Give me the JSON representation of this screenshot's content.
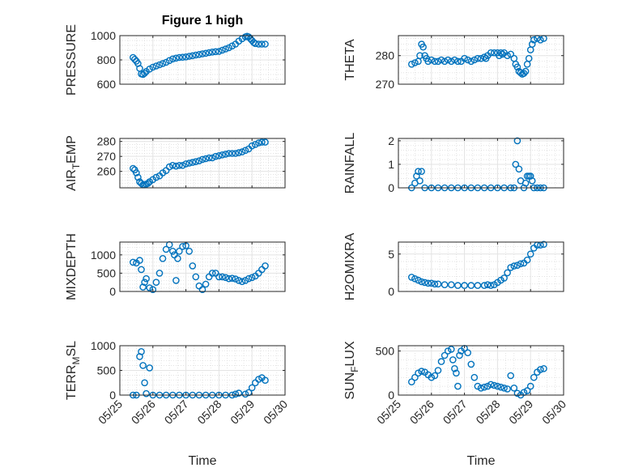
{
  "figure": {
    "title": "Figure 1 high",
    "marker_color": "#0072BD"
  },
  "chart_data": [
    {
      "type": "scatter",
      "title": "Figure 1 high",
      "ylabel": "PRESSURE",
      "xlabel": "",
      "ylim": [
        600,
        1000
      ],
      "yticks": [
        "600",
        "800",
        "1000"
      ],
      "xlim": [
        "05/25",
        "05/30"
      ],
      "series": [
        {
          "marker": "circle",
          "x": [
            25.4,
            25.45,
            25.5,
            25.55,
            25.6,
            25.65,
            25.7,
            25.75,
            25.8,
            25.9,
            26.0,
            26.1,
            26.2,
            26.3,
            26.4,
            26.5,
            26.6,
            26.7,
            26.8,
            26.9,
            27.0,
            27.1,
            27.2,
            27.3,
            27.4,
            27.5,
            27.6,
            27.7,
            27.8,
            27.9,
            28.0,
            28.1,
            28.2,
            28.3,
            28.4,
            28.5,
            28.6,
            28.7,
            28.8,
            28.85,
            28.9,
            28.95,
            29.0,
            29.05,
            29.1,
            29.2,
            29.3,
            29.4
          ],
          "y": [
            820,
            805,
            790,
            770,
            730,
            685,
            680,
            690,
            705,
            725,
            740,
            750,
            760,
            770,
            780,
            795,
            808,
            815,
            820,
            822,
            825,
            830,
            835,
            840,
            845,
            850,
            855,
            860,
            865,
            868,
            870,
            880,
            890,
            900,
            915,
            930,
            955,
            975,
            990,
            995,
            990,
            975,
            960,
            945,
            935,
            930,
            930,
            930
          ]
        }
      ]
    },
    {
      "type": "scatter",
      "ylabel": "THETA",
      "xlabel": "",
      "ylim": [
        270,
        287
      ],
      "yticks": [
        "270",
        "280"
      ],
      "xlim": [
        "05/25",
        "05/30"
      ],
      "series": [
        {
          "marker": "circle",
          "x": [
            25.4,
            25.5,
            25.6,
            25.65,
            25.7,
            25.75,
            25.8,
            25.85,
            25.9,
            26.0,
            26.1,
            26.2,
            26.3,
            26.4,
            26.5,
            26.6,
            26.7,
            26.8,
            26.9,
            27.0,
            27.1,
            27.2,
            27.3,
            27.4,
            27.5,
            27.6,
            27.65,
            27.7,
            27.8,
            27.9,
            28.0,
            28.05,
            28.1,
            28.15,
            28.2,
            28.3,
            28.4,
            28.5,
            28.55,
            28.6,
            28.65,
            28.7,
            28.75,
            28.8,
            28.85,
            28.9,
            28.95,
            29.0,
            29.05,
            29.1,
            29.2,
            29.3,
            29.4
          ],
          "y": [
            277,
            277.5,
            278,
            280,
            284,
            283,
            280,
            279,
            278,
            278.5,
            278,
            278,
            278.5,
            278,
            278.5,
            278,
            278.5,
            278,
            278,
            279,
            278.5,
            278,
            278.5,
            279,
            279,
            279.5,
            279,
            280,
            281,
            281,
            281,
            280,
            281,
            280.5,
            281,
            280,
            280.5,
            279,
            277,
            276,
            274.5,
            274,
            273.5,
            273.8,
            274.5,
            277,
            279,
            282,
            284,
            285.5,
            286,
            285.5,
            286
          ]
        }
      ]
    },
    {
      "type": "scatter",
      "ylabel": "AIR_TEMP",
      "xlabel": "",
      "ylim": [
        249,
        282
      ],
      "yticks": [
        "260",
        "270",
        "280"
      ],
      "xlim": [
        "05/25",
        "05/30"
      ],
      "series": [
        {
          "marker": "circle",
          "x": [
            25.4,
            25.45,
            25.5,
            25.55,
            25.6,
            25.65,
            25.7,
            25.75,
            25.8,
            25.85,
            25.9,
            26.0,
            26.1,
            26.2,
            26.3,
            26.4,
            26.5,
            26.6,
            26.7,
            26.8,
            26.9,
            27.0,
            27.1,
            27.2,
            27.3,
            27.4,
            27.5,
            27.6,
            27.7,
            27.8,
            27.9,
            28.0,
            28.1,
            28.2,
            28.3,
            28.4,
            28.5,
            28.6,
            28.7,
            28.8,
            28.9,
            29.0,
            29.1,
            29.2,
            29.3,
            29.4
          ],
          "y": [
            262,
            261,
            259,
            256,
            253,
            252,
            251,
            251,
            251.5,
            252,
            253,
            254.5,
            256,
            257,
            259,
            260.5,
            263,
            264,
            263.5,
            264,
            264,
            265,
            265.5,
            266,
            266.5,
            267,
            268,
            268.5,
            269,
            269,
            270,
            270.5,
            271,
            271.5,
            272,
            272,
            272,
            272.5,
            273,
            274,
            275,
            277,
            278,
            279,
            279.5,
            279.5
          ]
        }
      ]
    },
    {
      "type": "scatter",
      "ylabel": "RAINFALL",
      "xlabel": "",
      "ylim": [
        0,
        2.1
      ],
      "yticks": [
        "0",
        "1",
        "2"
      ],
      "xlim": [
        "05/25",
        "05/30"
      ],
      "series": [
        {
          "marker": "circle",
          "x": [
            25.4,
            25.5,
            25.55,
            25.6,
            25.65,
            25.7,
            25.8,
            26.0,
            26.2,
            26.4,
            26.6,
            26.8,
            27.0,
            27.2,
            27.4,
            27.6,
            27.8,
            28.0,
            28.2,
            28.4,
            28.5,
            28.55,
            28.6,
            28.65,
            28.7,
            28.8,
            28.85,
            28.9,
            28.95,
            29.0,
            29.05,
            29.1,
            29.2,
            29.3,
            29.4
          ],
          "y": [
            0,
            0.2,
            0.5,
            0.7,
            0.3,
            0.7,
            0,
            0,
            0,
            0,
            0,
            0,
            0,
            0,
            0,
            0,
            0,
            0,
            0,
            0,
            0,
            1,
            2,
            0.8,
            0.3,
            0,
            0.2,
            0.5,
            0.5,
            0.5,
            0.3,
            0,
            0,
            0,
            0
          ]
        }
      ]
    },
    {
      "type": "scatter",
      "ylabel": "MIXDEPTH",
      "xlabel": "",
      "ylim": [
        0,
        1350
      ],
      "yticks": [
        "0",
        "500",
        "1000"
      ],
      "xlim": [
        "05/25",
        "05/30"
      ],
      "series": [
        {
          "marker": "circle",
          "x": [
            25.4,
            25.5,
            25.6,
            25.65,
            25.7,
            25.75,
            25.8,
            25.9,
            26.0,
            26.1,
            26.2,
            26.3,
            26.4,
            26.5,
            26.6,
            26.65,
            26.7,
            26.75,
            26.8,
            26.9,
            27.0,
            27.1,
            27.2,
            27.3,
            27.4,
            27.5,
            27.6,
            27.7,
            27.8,
            27.9,
            28.0,
            28.1,
            28.2,
            28.3,
            28.4,
            28.5,
            28.6,
            28.7,
            28.8,
            28.9,
            29.0,
            29.1,
            29.2,
            29.3,
            29.4
          ],
          "y": [
            800,
            780,
            850,
            600,
            120,
            250,
            350,
            100,
            50,
            250,
            500,
            900,
            1150,
            1280,
            1100,
            1000,
            300,
            900,
            1100,
            1230,
            1250,
            1100,
            700,
            400,
            150,
            50,
            200,
            400,
            500,
            500,
            400,
            400,
            380,
            350,
            360,
            340,
            300,
            270,
            300,
            350,
            380,
            420,
            500,
            600,
            700
          ]
        }
      ]
    },
    {
      "type": "scatter",
      "ylabel": "H2OMIXRA",
      "xlabel": "",
      "ylim": [
        0,
        6.6
      ],
      "yticks": [
        "0",
        "5"
      ],
      "xlim": [
        "05/25",
        "05/30"
      ],
      "series": [
        {
          "marker": "circle",
          "x": [
            25.4,
            25.5,
            25.6,
            25.7,
            25.8,
            25.9,
            26.0,
            26.1,
            26.2,
            26.4,
            26.6,
            26.8,
            27.0,
            27.2,
            27.4,
            27.6,
            27.7,
            27.8,
            27.9,
            28.0,
            28.1,
            28.2,
            28.3,
            28.4,
            28.5,
            28.6,
            28.7,
            28.8,
            28.9,
            29.0,
            29.1,
            29.2,
            29.3,
            29.4
          ],
          "y": [
            1.9,
            1.7,
            1.5,
            1.3,
            1.2,
            1.1,
            1.1,
            1.0,
            1.0,
            0.9,
            0.9,
            0.8,
            0.8,
            0.8,
            0.8,
            0.8,
            0.9,
            0.8,
            0.9,
            1.2,
            1.5,
            1.8,
            2.5,
            3.2,
            3.4,
            3.5,
            3.7,
            3.8,
            4.2,
            5.0,
            5.8,
            6.2,
            6.2,
            6.3
          ]
        }
      ]
    },
    {
      "type": "scatter",
      "ylabel": "TERR_MSL",
      "xlabel": "Time",
      "ylim": [
        0,
        1000
      ],
      "yticks": [
        "0",
        "500",
        "1000"
      ],
      "xlim": [
        "05/25",
        "05/30"
      ],
      "xticks": [
        "05/25",
        "05/26",
        "05/27",
        "05/28",
        "05/29",
        "05/30"
      ],
      "series": [
        {
          "marker": "circle",
          "x": [
            25.4,
            25.5,
            25.6,
            25.65,
            25.7,
            25.75,
            25.8,
            25.9,
            26.0,
            26.2,
            26.4,
            26.6,
            26.8,
            27.0,
            27.2,
            27.4,
            27.6,
            27.8,
            28.0,
            28.2,
            28.4,
            28.5,
            28.6,
            28.8,
            28.9,
            29.0,
            29.1,
            29.2,
            29.3,
            29.4
          ],
          "y": [
            0,
            0,
            780,
            880,
            600,
            250,
            30,
            550,
            0,
            0,
            0,
            0,
            0,
            0,
            0,
            0,
            0,
            0,
            0,
            0,
            0,
            20,
            40,
            20,
            50,
            150,
            250,
            320,
            350,
            300
          ]
        }
      ]
    },
    {
      "type": "scatter",
      "ylabel": "SUN_FLUX",
      "xlabel": "Time",
      "ylim": [
        0,
        560
      ],
      "yticks": [
        "0",
        "500"
      ],
      "xlim": [
        "05/25",
        "05/30"
      ],
      "xticks": [
        "05/25",
        "05/26",
        "05/27",
        "05/28",
        "05/29",
        "05/30"
      ],
      "series": [
        {
          "marker": "circle",
          "x": [
            25.4,
            25.5,
            25.6,
            25.7,
            25.8,
            25.9,
            26.0,
            26.1,
            26.2,
            26.3,
            26.4,
            26.5,
            26.6,
            26.65,
            26.7,
            26.75,
            26.8,
            26.85,
            26.9,
            27.0,
            27.1,
            27.2,
            27.3,
            27.4,
            27.5,
            27.6,
            27.7,
            27.8,
            27.9,
            28.0,
            28.1,
            28.2,
            28.3,
            28.4,
            28.5,
            28.6,
            28.7,
            28.8,
            28.9,
            29.0,
            29.1,
            29.2,
            29.3,
            29.4
          ],
          "y": [
            150,
            200,
            250,
            270,
            260,
            230,
            200,
            220,
            280,
            380,
            450,
            500,
            520,
            400,
            300,
            250,
            100,
            450,
            500,
            530,
            480,
            350,
            200,
            100,
            80,
            90,
            100,
            120,
            110,
            100,
            90,
            80,
            70,
            220,
            80,
            20,
            0,
            30,
            50,
            100,
            200,
            260,
            290,
            300
          ]
        }
      ]
    }
  ]
}
